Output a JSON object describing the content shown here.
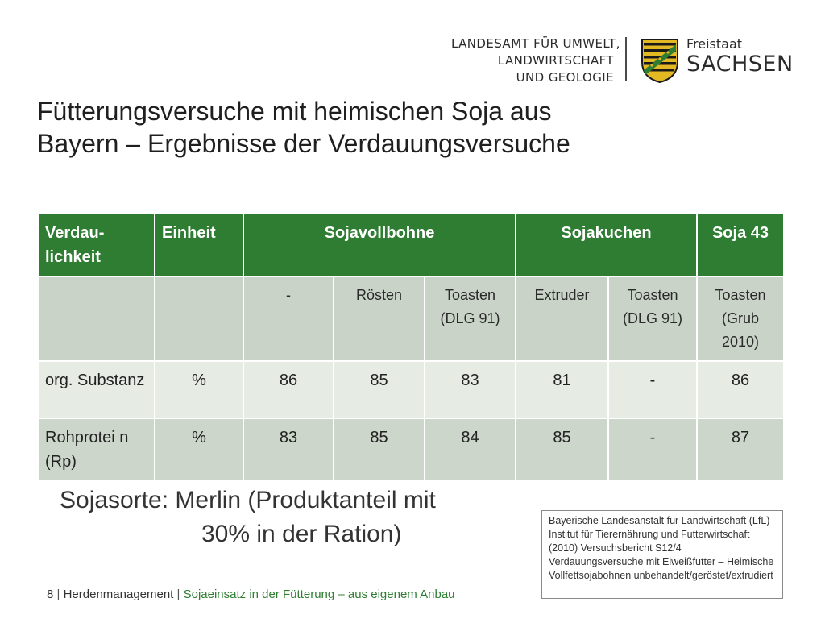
{
  "header": {
    "org_lines": [
      "LANDESAMT FÜR UMWELT,",
      "LANDWIRTSCHAFT",
      "UND GEOLOGIE"
    ],
    "state_small": "Freistaat",
    "state_big": "SACHSEN",
    "crest_icon": "saxony-coat-of-arms-icon",
    "colors": {
      "crest_gold": "#e2b823",
      "crest_black": "#1a1a1a",
      "crest_green": "#2e7d32"
    }
  },
  "title": {
    "line1": "Fütterungsversuche mit heimischen Soja aus",
    "line2": "Bayern – Ergebnisse der Verdauungsversuche"
  },
  "table": {
    "header": {
      "col1": "Verdau-lichkeit",
      "col2": "Einheit",
      "group1": "Sojavollbohne",
      "group2": "Sojakuchen",
      "group3": "Soja 43"
    },
    "subheader": [
      "",
      "",
      "-",
      "Rösten",
      "Toasten (DLG 91)",
      "Extruder",
      "Toasten (DLG 91)",
      "Toasten (Grub 2010)"
    ],
    "rows": [
      [
        "org. Substanz",
        "%",
        "86",
        "85",
        "83",
        "81",
        "-",
        "86"
      ],
      [
        "Rohprotei n (Rp)",
        "%",
        "83",
        "85",
        "84",
        "85",
        "-",
        "87"
      ]
    ],
    "colors": {
      "header_bg": "#2e7d32",
      "sub_bg": "#c9d3c7",
      "row1_bg": "#e6ebe4",
      "row2_bg": "#cdd6cb"
    }
  },
  "note": {
    "line1": "Sojasorte: Merlin (Produktanteil mit",
    "line2": "30% in der Ration)"
  },
  "source": "Bayerische Landesanstalt für Landwirtschaft (LfL) Institut für Tierernährung und Futterwirtschaft (2010) Versuchsbericht S12/4 Verdauungsversuche mit Eiweißfutter – Heimische Vollfettsojabohnen unbehandelt/geröstet/extrudiert",
  "footer": {
    "page": "8",
    "section": "Herdenmanagement",
    "topic": "Sojaeinsatz in der Fütterung – aus eigenem Anbau"
  }
}
